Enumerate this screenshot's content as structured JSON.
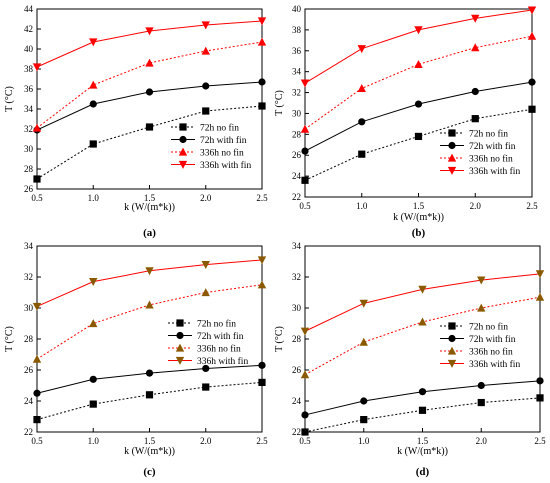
{
  "chart_data": [
    {
      "type": "line",
      "panel_label": "(a)",
      "xlabel": "k (W/(m*k))",
      "ylabel": "T (°C)",
      "xlim": [
        0.5,
        2.5
      ],
      "ylim": [
        26,
        44
      ],
      "xticks": [
        "0.5",
        "1.0",
        "1.5",
        "2.0",
        "2.5"
      ],
      "yticks": [
        "26",
        "28",
        "30",
        "32",
        "34",
        "36",
        "38",
        "40",
        "42",
        "44"
      ],
      "legend_position": "lower-right",
      "x": [
        0.5,
        1.0,
        1.5,
        2.0,
        2.5
      ],
      "series": [
        {
          "name": "72h no fin",
          "values": [
            27.0,
            30.5,
            32.2,
            33.8,
            34.3
          ],
          "color": "#000000",
          "marker": "square",
          "dash": true
        },
        {
          "name": "72h with fin",
          "values": [
            31.9,
            34.5,
            35.7,
            36.3,
            36.7
          ],
          "color": "#000000",
          "marker": "circle",
          "dash": false
        },
        {
          "name": "336h no fin",
          "values": [
            32.1,
            36.4,
            38.6,
            39.8,
            40.7
          ],
          "color": "#ff0000",
          "marker": "triangle-up",
          "dash": true
        },
        {
          "name": "336h with fin",
          "values": [
            38.2,
            40.7,
            41.8,
            42.4,
            42.8
          ],
          "color": "#ff0000",
          "marker": "triangle-down",
          "dash": false
        }
      ]
    },
    {
      "type": "line",
      "panel_label": "(b)",
      "xlabel": "k (W/(m*k))",
      "ylabel": "T (°C)",
      "xlim": [
        0.5,
        2.5
      ],
      "ylim": [
        22,
        40
      ],
      "xticks": [
        "0.5",
        "1.0",
        "1.5",
        "2.0",
        "2.5"
      ],
      "yticks": [
        "22",
        "24",
        "26",
        "28",
        "30",
        "32",
        "34",
        "36",
        "38",
        "40"
      ],
      "legend_position": "lower-right",
      "x": [
        0.5,
        1.0,
        1.5,
        2.0,
        2.5
      ],
      "series": [
        {
          "name": "72h no fin",
          "values": [
            23.6,
            26.1,
            27.8,
            29.5,
            30.4
          ],
          "color": "#000000",
          "marker": "square",
          "dash": true
        },
        {
          "name": "72h with fin",
          "values": [
            26.4,
            29.2,
            30.9,
            32.1,
            33.0
          ],
          "color": "#000000",
          "marker": "circle",
          "dash": false
        },
        {
          "name": "336h no fin",
          "values": [
            28.5,
            32.4,
            34.7,
            36.3,
            37.4
          ],
          "color": "#ff0000",
          "marker": "triangle-up",
          "dash": true
        },
        {
          "name": "336h with fin",
          "values": [
            32.9,
            36.2,
            38.0,
            39.1,
            39.9
          ],
          "color": "#ff0000",
          "marker": "triangle-down",
          "dash": false
        }
      ]
    },
    {
      "type": "line",
      "panel_label": "(c)",
      "xlabel": "k (W/(m*k))",
      "ylabel": "T (°C)",
      "xlim": [
        0.5,
        2.5
      ],
      "ylim": [
        22,
        34
      ],
      "xticks": [
        "0.5",
        "1.0",
        "1.5",
        "2.0",
        "2.5"
      ],
      "yticks": [
        "22",
        "24",
        "26",
        "28",
        "30",
        "32",
        "34"
      ],
      "legend_position": "center-right",
      "x": [
        0.5,
        1.0,
        1.5,
        2.0,
        2.5
      ],
      "series": [
        {
          "name": "72h no fin",
          "values": [
            22.8,
            23.8,
            24.4,
            24.9,
            25.2
          ],
          "color": "#000000",
          "marker": "square",
          "dash": true
        },
        {
          "name": "72h with fin",
          "values": [
            24.5,
            25.4,
            25.8,
            26.1,
            26.3
          ],
          "color": "#000000",
          "marker": "circle",
          "dash": false
        },
        {
          "name": "336h no fin",
          "values": [
            26.7,
            29.0,
            30.2,
            31.0,
            31.5
          ],
          "color": "#8b5a00",
          "marker": "triangle-up",
          "dash": true,
          "line_color": "#ff0000"
        },
        {
          "name": "336h with fin",
          "values": [
            30.1,
            31.7,
            32.4,
            32.8,
            33.1
          ],
          "color": "#8b5a00",
          "marker": "triangle-down",
          "dash": false,
          "line_color": "#ff0000"
        }
      ]
    },
    {
      "type": "line",
      "panel_label": "(d)",
      "xlabel": "k (W/(m*k))",
      "ylabel": "T (°C)",
      "xlim": [
        0.5,
        2.5
      ],
      "ylim": [
        22,
        34
      ],
      "xticks": [
        "0.5",
        "1.0",
        "1.5",
        "2.0",
        "2.5"
      ],
      "yticks": [
        "22",
        "24",
        "26",
        "28",
        "30",
        "32",
        "34"
      ],
      "legend_position": "center-right",
      "x": [
        0.5,
        1.0,
        1.5,
        2.0,
        2.5
      ],
      "series": [
        {
          "name": "72h no fin",
          "values": [
            22.0,
            22.8,
            23.4,
            23.9,
            24.2
          ],
          "color": "#000000",
          "marker": "square",
          "dash": true
        },
        {
          "name": "72h with fin",
          "values": [
            23.1,
            24.0,
            24.6,
            25.0,
            25.3
          ],
          "color": "#000000",
          "marker": "circle",
          "dash": false
        },
        {
          "name": "336h no fin",
          "values": [
            25.7,
            27.8,
            29.1,
            30.0,
            30.7
          ],
          "color": "#8b5a00",
          "marker": "triangle-up",
          "dash": true,
          "line_color": "#ff0000"
        },
        {
          "name": "336h with fin",
          "values": [
            28.5,
            30.3,
            31.2,
            31.8,
            32.2
          ],
          "color": "#8b5a00",
          "marker": "triangle-down",
          "dash": false,
          "line_color": "#ff0000"
        }
      ]
    }
  ]
}
